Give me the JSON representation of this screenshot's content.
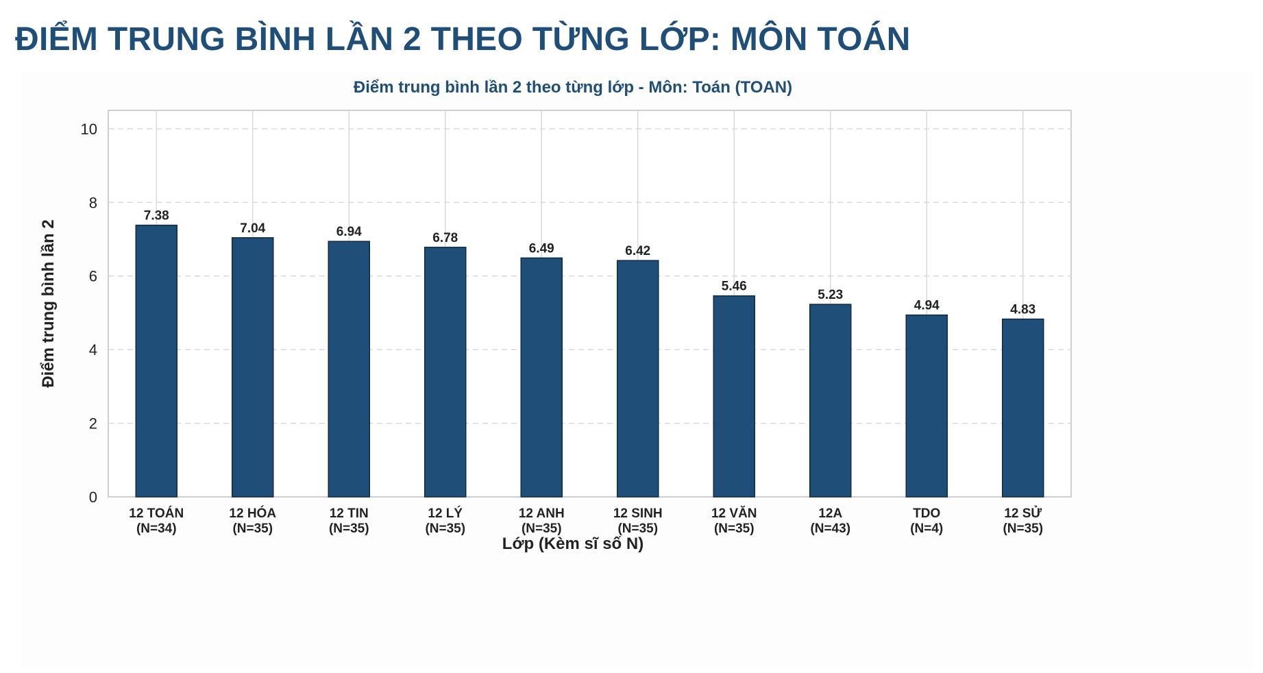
{
  "page": {
    "title": "ĐIỂM TRUNG BÌNH LẦN 2 THEO TỪNG LỚP: MÔN TOÁN"
  },
  "colors": {
    "bar": "#1f4e79",
    "title": "#1f4e79",
    "grid": "#d9d9d9",
    "text": "#222222"
  },
  "chart_data": {
    "type": "bar",
    "title": "Điểm trung bình lần 2 theo từng lớp - Môn: Toán (TOAN)",
    "xlabel": "Lớp (Kèm sĩ số N)",
    "ylabel": "Điểm trung bình lần 2",
    "ylim": [
      0,
      10.5
    ],
    "yticks": [
      "0",
      "2",
      "4",
      "6",
      "8",
      "10"
    ],
    "grid": true,
    "categories": [
      {
        "name": "12 TOÁN",
        "n": "(N=34)"
      },
      {
        "name": "12 HÓA",
        "n": "(N=35)"
      },
      {
        "name": "12 TIN",
        "n": "(N=35)"
      },
      {
        "name": "12 LÝ",
        "n": "(N=35)"
      },
      {
        "name": "12 ANH",
        "n": "(N=35)"
      },
      {
        "name": "12 SINH",
        "n": "(N=35)"
      },
      {
        "name": "12 VĂN",
        "n": "(N=35)"
      },
      {
        "name": "12A",
        "n": "(N=43)"
      },
      {
        "name": "TDO",
        "n": "(N=4)"
      },
      {
        "name": "12 SỬ",
        "n": "(N=35)"
      }
    ],
    "values": [
      7.38,
      7.04,
      6.94,
      6.78,
      6.49,
      6.42,
      5.46,
      5.23,
      4.94,
      4.83
    ],
    "value_labels": [
      "7.38",
      "7.04",
      "6.94",
      "6.78",
      "6.49",
      "6.42",
      "5.46",
      "5.23",
      "4.94",
      "4.83"
    ]
  }
}
